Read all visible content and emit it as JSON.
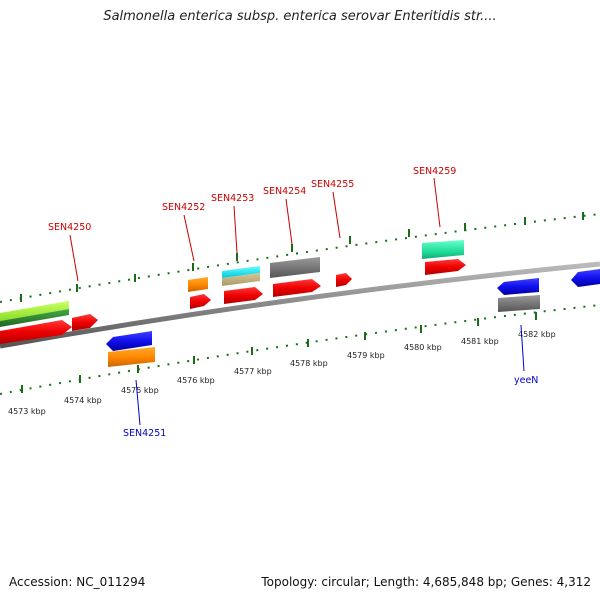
{
  "title": "Salmonella enterica subsp. enterica serovar Enteritidis str....",
  "footer": {
    "accession": "Accession: NC_011294",
    "summary": "Topology: circular; Length: 4,685,848 bp; Genes: 4,312"
  },
  "scale_labels": [
    "4573 kbp",
    "4574 kbp",
    "4575 kbp",
    "4576 kbp",
    "4577 kbp",
    "4578 kbp",
    "4579 kbp",
    "4580 kbp",
    "4581 kbp",
    "4582 kbp"
  ],
  "gene_labels_forward": [
    "SEN4250",
    "SEN4252",
    "SEN4253",
    "SEN4254",
    "SEN4255",
    "SEN4259"
  ],
  "gene_labels_reverse": [
    "SEN4251",
    "yeeN"
  ],
  "colors": {
    "forward_label": "#cc0000",
    "reverse_label": "#0000cc",
    "tick": "#1a6e1a",
    "backbone": "#888888"
  }
}
